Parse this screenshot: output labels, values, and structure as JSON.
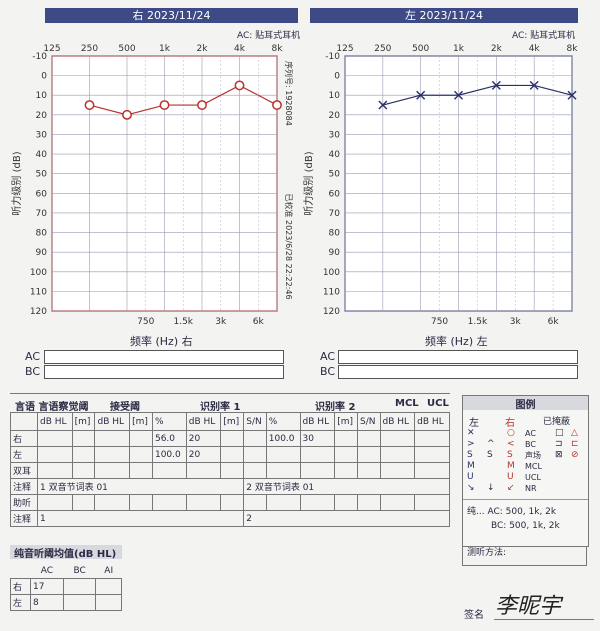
{
  "right_chart": {
    "header": "右 2023/11/24",
    "ac_type": "AC: 贴耳式耳机",
    "freq_top": [
      "125",
      "250",
      "500",
      "1k",
      "2k",
      "4k",
      "8k"
    ],
    "freq_bottom": [
      "750",
      "1.5k",
      "3k",
      "6k"
    ],
    "xlabel": "频率 (Hz) 右",
    "ylabel": "听力级别 (dB)",
    "serial": "序列号: 1928084",
    "calibrated": "已校准 2023/6/28 22:22:46",
    "levels": [
      "-10",
      "0",
      "10",
      "20",
      "30",
      "40",
      "50",
      "60",
      "70",
      "80",
      "90",
      "100",
      "110",
      "120"
    ]
  },
  "left_chart": {
    "header": "左 2023/11/24",
    "ac_type": "AC: 贴耳式耳机",
    "freq_top": [
      "125",
      "250",
      "500",
      "1k",
      "2k",
      "4k",
      "8k"
    ],
    "freq_bottom": [
      "750",
      "1.5k",
      "3k",
      "6k"
    ],
    "xlabel": "频率 (Hz) 左",
    "ylabel": "听力级别 (dB)",
    "levels": [
      "-10",
      "0",
      "10",
      "20",
      "30",
      "40",
      "50",
      "60",
      "70",
      "80",
      "90",
      "100",
      "110",
      "120"
    ]
  },
  "chart_data": [
    {
      "type": "line",
      "title": "右 2023/11/24",
      "xlabel": "频率 (Hz) 右",
      "ylabel": "听力级别 (dB)",
      "x": [
        "250",
        "500",
        "1k",
        "2k",
        "4k",
        "8k"
      ],
      "series": [
        {
          "name": "AC 右",
          "marker": "circle",
          "color": "#b8322e",
          "values": [
            15,
            20,
            15,
            15,
            5,
            15
          ]
        }
      ],
      "ylim": [
        -10,
        120
      ],
      "y_inverted": true
    },
    {
      "type": "line",
      "title": "左 2023/11/24",
      "xlabel": "频率 (Hz) 左",
      "ylabel": "听力级别 (dB)",
      "x": [
        "250",
        "500",
        "1k",
        "2k",
        "4k",
        "8k"
      ],
      "series": [
        {
          "name": "AC 左",
          "marker": "cross",
          "color": "#2a2f6b",
          "values": [
            15,
            10,
            10,
            5,
            5,
            10
          ]
        }
      ],
      "ylim": [
        -10,
        120
      ],
      "y_inverted": true
    }
  ],
  "acbc": {
    "ac": "AC",
    "bc": "BC"
  },
  "speech": {
    "title": "言语 言语察觉阈",
    "accept": "接受阈",
    "rate1": "识别率 1",
    "rate2": "识别率 2",
    "mcl": "MCL",
    "ucl": "UCL",
    "cols": [
      "dB HL",
      "[m]",
      "dB HL",
      "[m]",
      "%",
      "dB HL",
      "[m]",
      "S/N",
      "%",
      "dB HL",
      "[m]",
      "S/N",
      "dB HL",
      "dB HL"
    ],
    "rows": [
      {
        "label": "右",
        "pct1": "56.0",
        "db1": "20",
        "pct2": "100.0",
        "db2": "30"
      },
      {
        "label": "左",
        "pct1": "100.0",
        "db1": "20",
        "pct2": "",
        "db2": ""
      },
      {
        "label": "双耳",
        "pct1": "",
        "db1": "",
        "pct2": "",
        "db2": ""
      }
    ],
    "note_label": "注释",
    "note1": "1 双音节词表 01",
    "note2": "2 双音节词表 01",
    "aided_label": "助听",
    "note_label2": "注释",
    "note3": "1",
    "note4": "2"
  },
  "pta": {
    "title": "纯音听阈均值(dB HL)",
    "cols": [
      "AC",
      "BC",
      "AI"
    ],
    "rows": [
      {
        "label": "右",
        "ac": "17"
      },
      {
        "label": "左",
        "ac": "8"
      }
    ]
  },
  "legend": {
    "title": "图例",
    "left": "左",
    "right": "右",
    "masked": "已掩蔽",
    "items": [
      "AC",
      "BC",
      "声场",
      "MCL",
      "UCL",
      "NR"
    ],
    "pure_ac": "纯... AC: 500, 1k, 2k",
    "pure_bc": "BC: 500, 1k, 2k",
    "method": "测听方法:"
  },
  "signature": {
    "label": "签名",
    "name": "李昵宇"
  }
}
